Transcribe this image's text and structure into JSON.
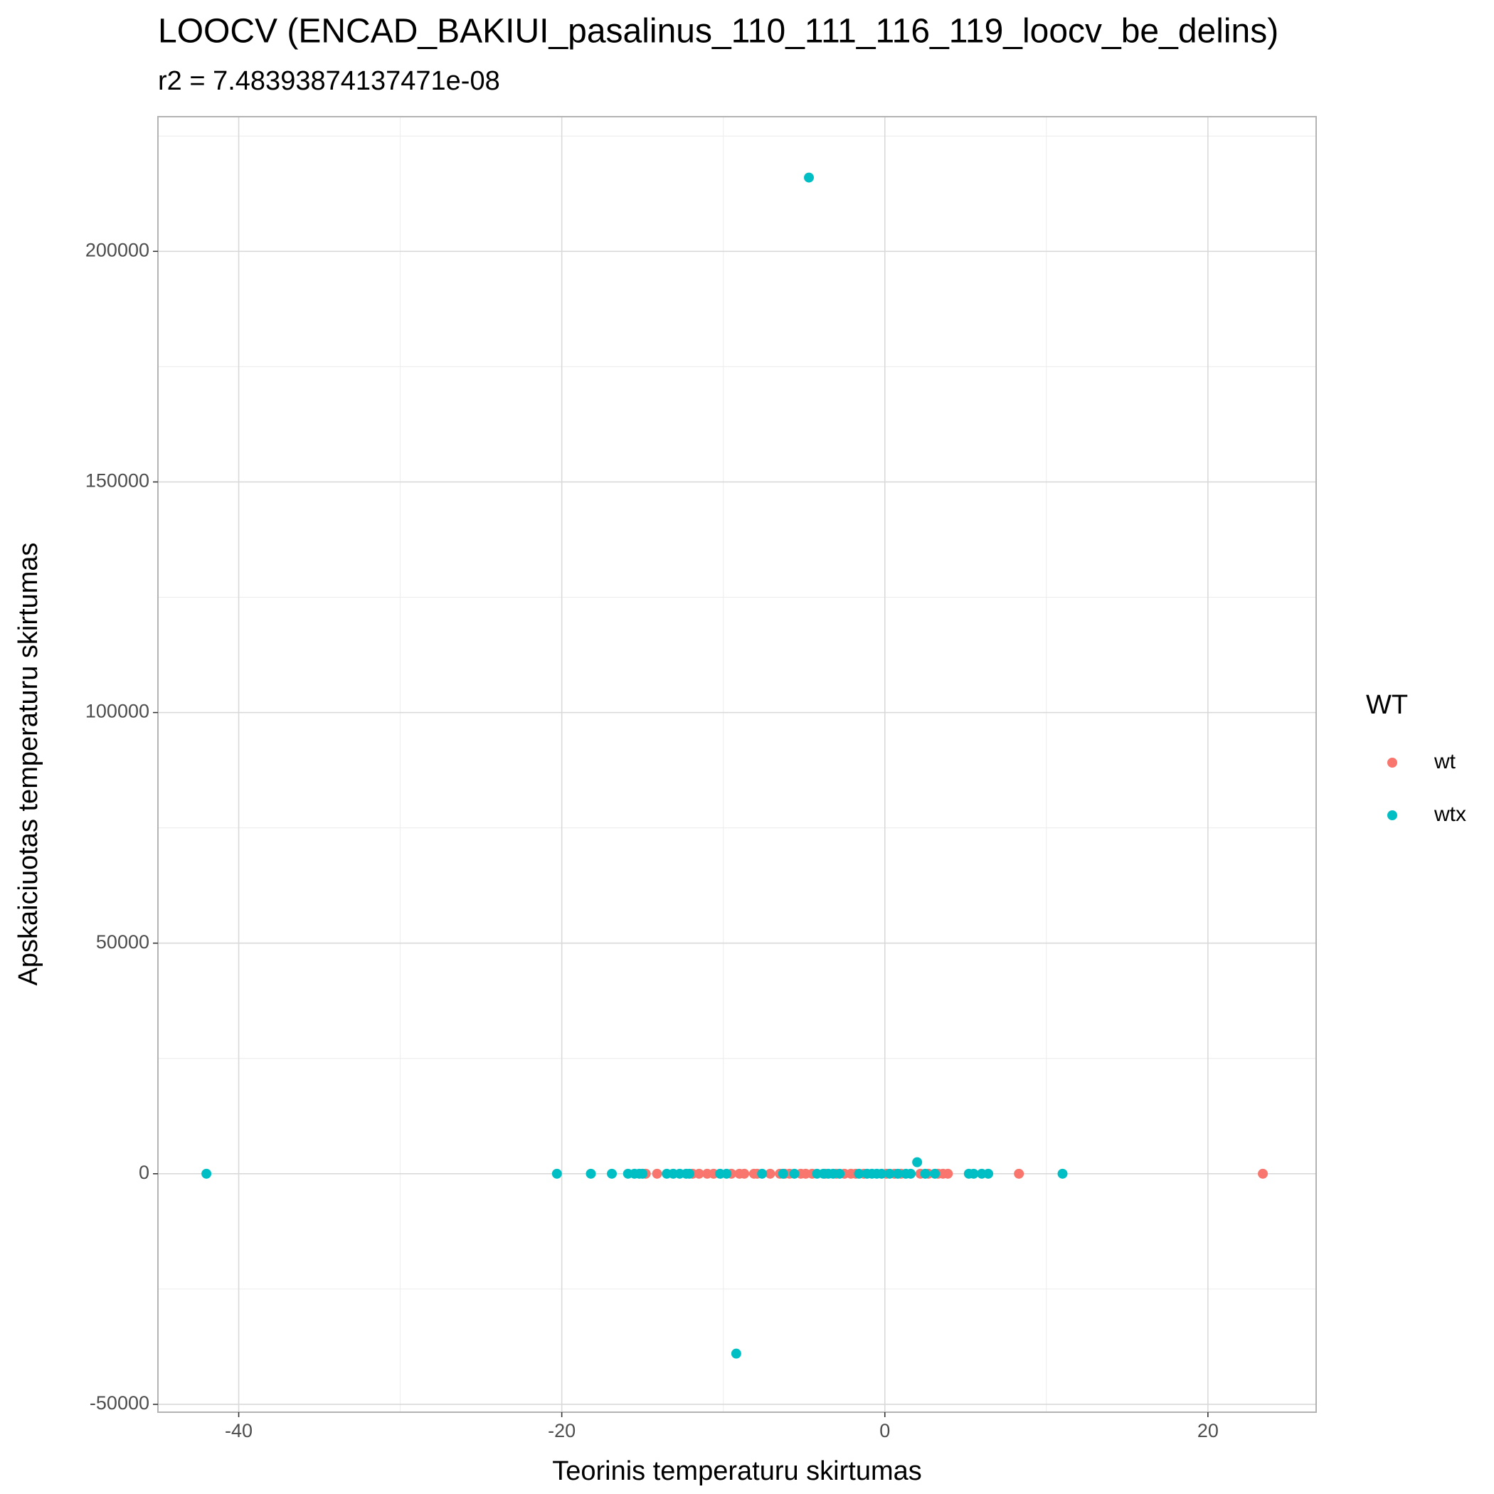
{
  "chart_data": {
    "type": "scatter",
    "title": "LOOCV (ENCAD_BAKIUI_pasalinus_110_111_116_119_loocv_be_delins)",
    "subtitle": "r2 = 7.48393874137471e-08",
    "x_label": "Teorinis temperaturu skirtumas",
    "y_label": "Apskaiciuotas temperaturu skirtumas",
    "legend_title": "WT",
    "legend_position": "right",
    "grid": true,
    "xlim": [
      -45,
      26.7
    ],
    "ylim": [
      -51700,
      229200
    ],
    "xticks": [
      -40,
      -20,
      0,
      20
    ],
    "yticks": [
      -50000,
      0,
      50000,
      100000,
      150000,
      200000
    ],
    "series": [
      {
        "name": "wt",
        "color": "#F8766D",
        "x": [
          -14.8,
          -14.1,
          -11.9,
          -11.5,
          -11,
          -10.6,
          -9.5,
          -9,
          -8.7,
          -8.1,
          -7.9,
          -7.1,
          -6.5,
          -6.2,
          -5.9,
          -5.2,
          -4.9,
          -4.5,
          -3.7,
          -3.0,
          -2.5,
          -2.1,
          -1.8,
          -1.3,
          0.1,
          0.6,
          1.0,
          2.2,
          2.7,
          3.3,
          3.6,
          3.9,
          8.3,
          23.4
        ],
        "y": [
          0,
          0,
          0,
          0,
          0,
          0,
          0,
          0,
          0,
          0,
          0,
          0,
          0,
          0,
          0,
          0,
          0,
          0,
          0,
          0,
          0,
          0,
          0,
          0,
          0,
          0,
          0,
          0,
          0,
          0,
          0,
          0,
          0,
          0
        ]
      },
      {
        "name": "wtx",
        "color": "#00BFC4",
        "x": [
          -42,
          -20.3,
          -18.2,
          -16.9,
          -15.9,
          -15.5,
          -15.2,
          -15,
          -13.5,
          -13.1,
          -12.7,
          -12.3,
          -12.1,
          -10.2,
          -9.8,
          -7.6,
          -6.3,
          -5.6,
          -4.2,
          -3.8,
          -3.5,
          -3.2,
          -2.8,
          -1.6,
          -1.1,
          -0.8,
          -0.5,
          -0.2,
          0.3,
          0.8,
          1.3,
          1.6,
          2.0,
          2.5,
          3.1,
          5.2,
          5.5,
          6.0,
          6.4,
          11,
          -4.7,
          -9.2
        ],
        "y": [
          0,
          0,
          0,
          0,
          0,
          0,
          0,
          0,
          0,
          0,
          0,
          0,
          0,
          0,
          0,
          0,
          0,
          0,
          0,
          0,
          0,
          0,
          0,
          0,
          0,
          0,
          0,
          0,
          0,
          0,
          0,
          0,
          2500,
          0,
          0,
          0,
          0,
          0,
          0,
          0,
          216000,
          -39000
        ]
      }
    ]
  }
}
